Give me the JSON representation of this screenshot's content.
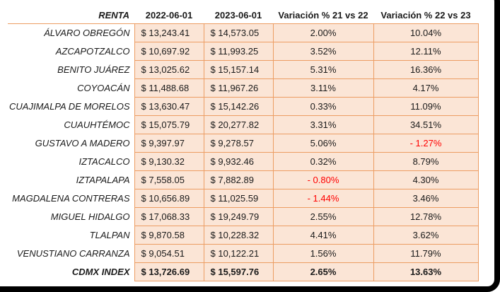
{
  "colors": {
    "cell_fill": "#FBE5D6",
    "cell_border": "#EC9D63",
    "negative_text": "#FF0000",
    "text": "#1A1A1A",
    "frame": "#000000"
  },
  "chart_data": {
    "type": "table",
    "title": "RENTA",
    "columns": [
      "RENTA",
      "2022-06-01",
      "2023-06-01",
      "Variación % 21 vs 22",
      "Variación % 22 vs 23"
    ],
    "rows": [
      {
        "name": "ÁLVARO OBREGÓN",
        "rent_2022": "$ 13,243.41",
        "rent_2023": "$ 14,573.05",
        "var_21_22": "2.00%",
        "var_22_23": "10.04%",
        "bold": false
      },
      {
        "name": "AZCAPOTZALCO",
        "rent_2022": "$ 10,697.92",
        "rent_2023": "$ 11,993.25",
        "var_21_22": "3.52%",
        "var_22_23": "12.11%",
        "bold": false
      },
      {
        "name": "BENITO JUÁREZ",
        "rent_2022": "$ 13,025.62",
        "rent_2023": "$ 15,157.14",
        "var_21_22": "5.31%",
        "var_22_23": "16.36%",
        "bold": false
      },
      {
        "name": "COYOACÁN",
        "rent_2022": "$ 11,488.68",
        "rent_2023": "$ 11,967.26",
        "var_21_22": "3.11%",
        "var_22_23": "4.17%",
        "bold": false
      },
      {
        "name": "CUAJIMALPA DE MORELOS",
        "rent_2022": "$ 13,630.47",
        "rent_2023": "$ 15,142.26",
        "var_21_22": "0.33%",
        "var_22_23": "11.09%",
        "bold": false
      },
      {
        "name": "CUAUHTÉMOC",
        "rent_2022": "$ 15,075.79",
        "rent_2023": "$ 20,277.82",
        "var_21_22": "3.31%",
        "var_22_23": "34.51%",
        "bold": false
      },
      {
        "name": "GUSTAVO A MADERO",
        "rent_2022": "$ 9,397.97",
        "rent_2023": "$ 9,278.57",
        "var_21_22": "5.06%",
        "var_22_23": "- 1.27%",
        "bold": false
      },
      {
        "name": "IZTACALCO",
        "rent_2022": "$ 9,130.32",
        "rent_2023": "$ 9,932.46",
        "var_21_22": "0.32%",
        "var_22_23": "8.79%",
        "bold": false
      },
      {
        "name": "IZTAPALAPA",
        "rent_2022": "$ 7,558.05",
        "rent_2023": "$ 7,882.89",
        "var_21_22": "- 0.80%",
        "var_22_23": "4.30%",
        "bold": false
      },
      {
        "name": "MAGDALENA CONTRERAS",
        "rent_2022": "$ 10,656.89",
        "rent_2023": "$ 11,025.59",
        "var_21_22": "- 1.44%",
        "var_22_23": "3.46%",
        "bold": false
      },
      {
        "name": "MIGUEL HIDALGO",
        "rent_2022": "$ 17,068.33",
        "rent_2023": "$ 19,249.79",
        "var_21_22": "2.55%",
        "var_22_23": "12.78%",
        "bold": false
      },
      {
        "name": "TLALPAN",
        "rent_2022": "$ 9,870.58",
        "rent_2023": "$ 10,228.32",
        "var_21_22": "4.41%",
        "var_22_23": "3.62%",
        "bold": false
      },
      {
        "name": "VENUSTIANO CARRANZA",
        "rent_2022": "$ 9,054.51",
        "rent_2023": "$ 10,122.21",
        "var_21_22": "1.56%",
        "var_22_23": "11.79%",
        "bold": false
      },
      {
        "name": "CDMX INDEX",
        "rent_2022": "$ 13,726.69",
        "rent_2023": "$ 15,597.76",
        "var_21_22": "2.65%",
        "var_22_23": "13.63%",
        "bold": true
      }
    ]
  }
}
